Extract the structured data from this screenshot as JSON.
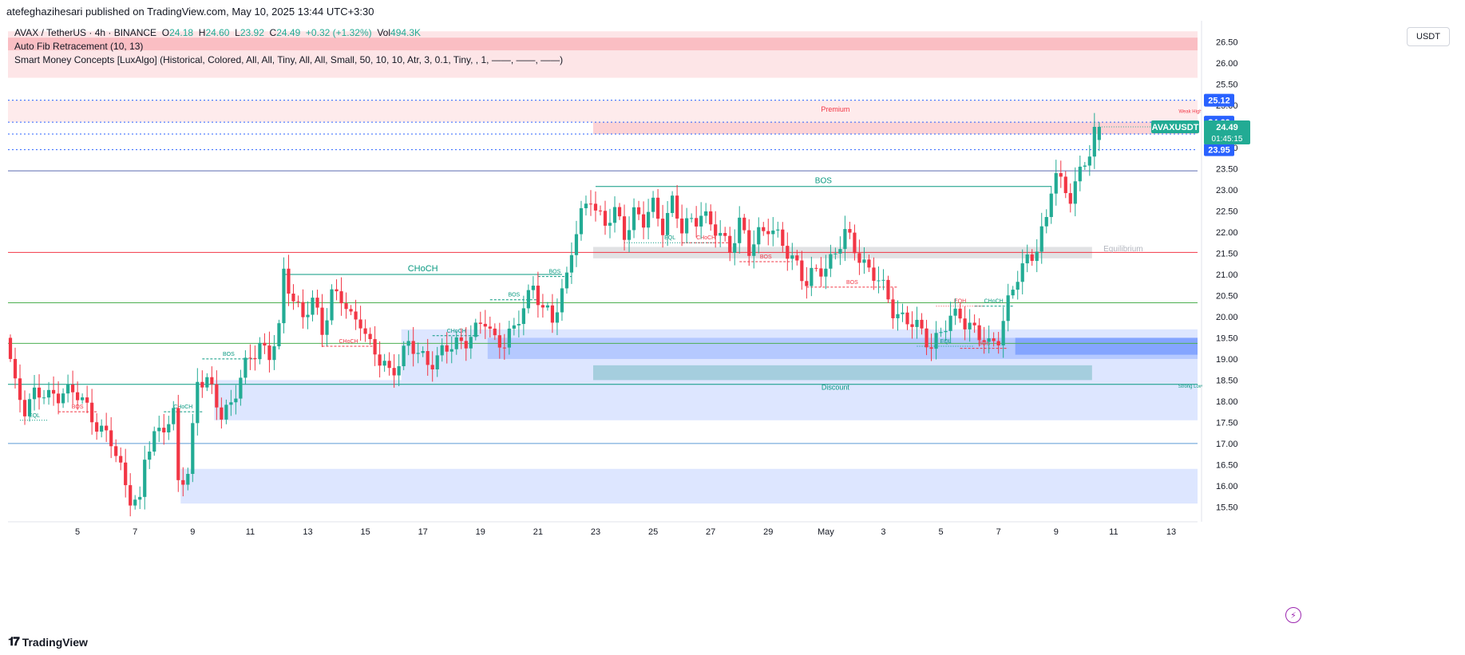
{
  "header": {
    "publisher": "atefeghazihesari published on TradingView.com, May 10, 2025 13:44 UTC+3:30"
  },
  "legend": {
    "symbol": "AVAX / TetherUS · 4h · BINANCE",
    "o_label": "O",
    "o_value": "24.18",
    "h_label": "H",
    "h_value": "24.60",
    "l_label": "L",
    "l_value": "23.92",
    "c_label": "C",
    "c_value": "24.49",
    "change": "+0.32 (+1.32%)",
    "vol_label": "Vol",
    "vol_value": "494.3K",
    "fib": "Auto Fib Retracement (10, 13)",
    "smc": "Smart Money Concepts [LuxAlgo] (Historical, Colored, All, All, Tiny, All, All, Small, 50, 10, 10, Atr, 3, 0.1, Tiny, , 1, ——, ——, ——)"
  },
  "currency": "USDT",
  "footer": {
    "logo_mark": "𝟏𝟕",
    "logo_text": "TradingView"
  },
  "colors": {
    "up": "#22ab94",
    "down": "#f23645",
    "blue": "#2962ff",
    "green_label": "#089981",
    "red_label": "#f23645"
  },
  "chart_data": {
    "type": "candlestick",
    "symbol": "AVAXUSDT",
    "timeframe": "4h",
    "ylim": [
      15.3,
      27.0
    ],
    "y_ticks": [
      "26.50",
      "26.00",
      "25.50",
      "25.00",
      "24.50",
      "24.00",
      "23.50",
      "23.00",
      "22.50",
      "22.00",
      "21.50",
      "21.00",
      "20.50",
      "20.00",
      "19.50",
      "19.00",
      "18.50",
      "18.00",
      "17.50",
      "17.00",
      "16.50",
      "16.00",
      "15.50"
    ],
    "x_ticks": [
      {
        "label": "5",
        "bar": 14
      },
      {
        "label": "7",
        "bar": 26
      },
      {
        "label": "9",
        "bar": 38
      },
      {
        "label": "11",
        "bar": 50
      },
      {
        "label": "13",
        "bar": 62
      },
      {
        "label": "15",
        "bar": 74
      },
      {
        "label": "17",
        "bar": 86
      },
      {
        "label": "19",
        "bar": 98
      },
      {
        "label": "21",
        "bar": 110
      },
      {
        "label": "23",
        "bar": 122
      },
      {
        "label": "25",
        "bar": 134
      },
      {
        "label": "27",
        "bar": 146
      },
      {
        "label": "29",
        "bar": 158
      },
      {
        "label": "May",
        "bar": 170
      },
      {
        "label": "3",
        "bar": 182
      },
      {
        "label": "5",
        "bar": 194
      },
      {
        "label": "7",
        "bar": 206
      },
      {
        "label": "9",
        "bar": 218
      },
      {
        "label": "11",
        "bar": 230
      },
      {
        "label": "13",
        "bar": 242
      }
    ],
    "bars_total": 248,
    "price_labels": [
      {
        "value": "25.12",
        "price": 25.12,
        "color": "#2962ff"
      },
      {
        "value": "24.60",
        "price": 24.6,
        "color": "#2962ff"
      },
      {
        "value": "24.32",
        "price": 24.32,
        "color": "#2962ff"
      },
      {
        "value": "23.95",
        "price": 23.95,
        "color": "#2962ff"
      }
    ],
    "last_price": {
      "symbol": "AVAXUSDT",
      "price": "24.49",
      "countdown": "01:45:15",
      "value": 24.49
    },
    "path": [
      [
        0,
        19.5
      ],
      [
        2,
        18.3
      ],
      [
        4,
        17.9
      ],
      [
        6,
        18.2
      ],
      [
        9,
        18.05
      ],
      [
        12,
        18.3
      ],
      [
        15,
        18.1
      ],
      [
        18,
        17.7
      ],
      [
        20,
        17.3
      ],
      [
        22,
        17.0
      ],
      [
        24,
        16.4
      ],
      [
        26,
        15.8
      ],
      [
        28,
        15.5
      ],
      [
        29,
        16.6
      ],
      [
        31,
        17.2
      ],
      [
        33,
        17.5
      ],
      [
        35,
        17.6
      ],
      [
        36,
        16.0
      ],
      [
        38,
        16.3
      ],
      [
        39,
        17.4
      ],
      [
        40,
        18.6
      ],
      [
        42,
        18.4
      ],
      [
        45,
        17.7
      ],
      [
        47,
        18.0
      ],
      [
        49,
        18.5
      ],
      [
        51,
        19.0
      ],
      [
        53,
        19.4
      ],
      [
        55,
        19.1
      ],
      [
        57,
        19.6
      ],
      [
        58,
        21.0
      ],
      [
        60,
        20.5
      ],
      [
        62,
        20.0
      ],
      [
        64,
        20.3
      ],
      [
        66,
        19.7
      ],
      [
        68,
        20.6
      ],
      [
        70,
        20.4
      ],
      [
        72,
        19.9
      ],
      [
        74,
        20.0
      ],
      [
        76,
        19.3
      ],
      [
        78,
        18.9
      ],
      [
        80,
        18.7
      ],
      [
        82,
        19.0
      ],
      [
        84,
        19.3
      ],
      [
        86,
        19.1
      ],
      [
        88,
        19.0
      ],
      [
        90,
        19.0
      ],
      [
        92,
        19.2
      ],
      [
        94,
        19.4
      ],
      [
        96,
        19.5
      ],
      [
        98,
        19.6
      ],
      [
        100,
        19.9
      ],
      [
        102,
        19.5
      ],
      [
        104,
        19.4
      ],
      [
        106,
        19.6
      ],
      [
        108,
        20.3
      ],
      [
        110,
        20.8
      ],
      [
        112,
        20.1
      ],
      [
        114,
        19.9
      ],
      [
        115,
        20.3
      ],
      [
        117,
        21.0
      ],
      [
        118,
        21.6
      ],
      [
        120,
        22.3
      ],
      [
        122,
        22.9
      ],
      [
        123,
        22.6
      ],
      [
        125,
        22.2
      ],
      [
        127,
        22.4
      ],
      [
        129,
        22.0
      ],
      [
        131,
        22.5
      ],
      [
        133,
        22.2
      ],
      [
        135,
        22.6
      ],
      [
        137,
        22.2
      ],
      [
        139,
        22.7
      ],
      [
        141,
        22.0
      ],
      [
        143,
        22.3
      ],
      [
        145,
        22.5
      ],
      [
        147,
        22.1
      ],
      [
        149,
        21.9
      ],
      [
        151,
        21.7
      ],
      [
        153,
        22.2
      ],
      [
        155,
        21.5
      ],
      [
        157,
        22.0
      ],
      [
        159,
        22.2
      ],
      [
        161,
        21.8
      ],
      [
        163,
        21.5
      ],
      [
        165,
        21.3
      ],
      [
        167,
        20.8
      ],
      [
        169,
        21.0
      ],
      [
        171,
        21.2
      ],
      [
        173,
        21.6
      ],
      [
        175,
        21.9
      ],
      [
        177,
        21.6
      ],
      [
        179,
        21.3
      ],
      [
        181,
        21.0
      ],
      [
        183,
        20.6
      ],
      [
        185,
        20.2
      ],
      [
        187,
        20.0
      ],
      [
        189,
        19.8
      ],
      [
        191,
        19.6
      ],
      [
        193,
        19.4
      ],
      [
        195,
        19.6
      ],
      [
        197,
        19.9
      ],
      [
        199,
        20.1
      ],
      [
        201,
        19.8
      ],
      [
        203,
        19.5
      ],
      [
        205,
        19.3
      ],
      [
        207,
        19.6
      ],
      [
        209,
        20.3
      ],
      [
        211,
        20.9
      ],
      [
        213,
        21.4
      ],
      [
        215,
        21.7
      ],
      [
        217,
        22.2
      ],
      [
        218,
        23.0
      ],
      [
        219,
        23.4
      ],
      [
        220,
        23.2
      ],
      [
        222,
        22.9
      ],
      [
        224,
        23.3
      ],
      [
        226,
        23.9
      ],
      [
        227,
        24.49
      ]
    ],
    "zones": [
      {
        "name": "supply-top",
        "y1": 26.75,
        "y2": 25.65,
        "x1": 0,
        "x2": 248,
        "color": "rgba(242,54,69,0.13)"
      },
      {
        "name": "supply-strong",
        "y1": 26.6,
        "y2": 26.3,
        "x1": 0,
        "x2": 248,
        "color": "rgba(242,54,69,0.22)"
      },
      {
        "name": "premium",
        "y1": 25.12,
        "y2": 24.6,
        "x1": 0,
        "x2": 248,
        "color": "rgba(242,54,69,0.10)"
      },
      {
        "name": "premium-ob",
        "y1": 24.6,
        "y2": 24.32,
        "x1": 122,
        "x2": 248,
        "color": "rgba(242,54,69,0.22)"
      },
      {
        "name": "equilibrium",
        "y1": 21.65,
        "y2": 21.38,
        "x1": 122,
        "x2": 226,
        "color": "rgba(120,123,134,0.22)"
      },
      {
        "name": "demand-a",
        "y1": 19.7,
        "y2": 18.5,
        "x1": 82,
        "x2": 248,
        "color": "rgba(41,98,255,0.16)"
      },
      {
        "name": "demand-b",
        "y1": 19.5,
        "y2": 19.0,
        "x1": 100,
        "x2": 248,
        "color": "rgba(41,98,255,0.22)"
      },
      {
        "name": "demand-c",
        "y1": 19.5,
        "y2": 19.1,
        "x1": 210,
        "x2": 248,
        "color": "rgba(41,98,255,0.35)"
      },
      {
        "name": "demand-d",
        "y1": 18.85,
        "y2": 18.5,
        "x1": 122,
        "x2": 226,
        "color": "rgba(0,137,123,0.25)"
      },
      {
        "name": "discount",
        "y1": 18.5,
        "y2": 17.55,
        "x1": 43,
        "x2": 248,
        "color": "rgba(41,98,255,0.16)"
      },
      {
        "name": "demand-low",
        "y1": 16.4,
        "y2": 15.58,
        "x1": 36,
        "x2": 248,
        "color": "rgba(41,98,255,0.16)"
      }
    ],
    "levels": [
      {
        "price": 25.12,
        "color": "#2962ff",
        "dash": "2,3"
      },
      {
        "price": 24.6,
        "color": "#2962ff",
        "dash": "2,3"
      },
      {
        "price": 24.32,
        "color": "#2962ff",
        "dash": "2,3"
      },
      {
        "price": 23.95,
        "color": "#2962ff",
        "dash": "2,3"
      },
      {
        "price": 23.45,
        "color": "#5b6bb0",
        "dash": ""
      },
      {
        "price": 21.52,
        "color": "#f23645",
        "dash": ""
      },
      {
        "price": 20.33,
        "color": "#4caf50",
        "dash": ""
      },
      {
        "price": 19.37,
        "color": "#4caf50",
        "dash": ""
      },
      {
        "price": 18.4,
        "color": "#089981",
        "dash": ""
      },
      {
        "price": 17.0,
        "color": "#5b9bd5",
        "dash": ""
      }
    ],
    "structure": [
      {
        "label": "CHoCH",
        "color": "#089981",
        "x1": 57,
        "x2": 115,
        "price": 21.0,
        "dash": "",
        "size": 11
      },
      {
        "label": "BOS",
        "color": "#089981",
        "x1": 122,
        "x2": 217,
        "price": 23.08,
        "dash": "",
        "size": 10
      },
      {
        "label": "BOS",
        "color": "#089981",
        "x1": 40,
        "x2": 51,
        "price": 19.0,
        "dash": "3,2",
        "size": 7
      },
      {
        "label": "CHoCH",
        "color": "#089981",
        "x1": 32,
        "x2": 40,
        "price": 17.75,
        "dash": "3,2",
        "size": 7
      },
      {
        "label": "BOS",
        "color": "#089981",
        "x1": 110,
        "x2": 117,
        "price": 20.95,
        "dash": "3,2",
        "size": 7
      },
      {
        "label": "BOS",
        "color": "#089981",
        "x1": 100,
        "x2": 110,
        "price": 20.4,
        "dash": "3,2",
        "size": 7
      },
      {
        "label": "CHoCH",
        "color": "#089981",
        "x1": 88,
        "x2": 98,
        "price": 19.55,
        "dash": "3,2",
        "size": 7
      },
      {
        "label": "CHoCH",
        "color": "#089981",
        "x1": 201,
        "x2": 209,
        "price": 20.25,
        "dash": "3,2",
        "size": 7
      },
      {
        "label": "BOS",
        "color": "#f23645",
        "x1": 10,
        "x2": 18,
        "price": 17.75,
        "dash": "3,2",
        "size": 7
      },
      {
        "label": "CHoCH",
        "color": "#f23645",
        "x1": 65,
        "x2": 76,
        "price": 19.3,
        "dash": "3,2",
        "size": 7
      },
      {
        "label": "CHoCH",
        "color": "#f23645",
        "x1": 140,
        "x2": 150,
        "price": 21.75,
        "dash": "3,2",
        "size": 7
      },
      {
        "label": "BOS",
        "color": "#f23645",
        "x1": 152,
        "x2": 163,
        "price": 21.3,
        "dash": "3,2",
        "size": 7
      },
      {
        "label": "BOS",
        "color": "#f23645",
        "x1": 166,
        "x2": 185,
        "price": 20.7,
        "dash": "3,2",
        "size": 7
      },
      {
        "label": "BOS",
        "color": "#f23645",
        "x1": 198,
        "x2": 208,
        "price": 19.25,
        "dash": "3,2",
        "size": 7
      },
      {
        "label": "EQH",
        "color": "#f23645",
        "x1": 193,
        "x2": 203,
        "price": 20.25,
        "dash": "1,2",
        "size": 7
      },
      {
        "label": "EQL",
        "color": "#089981",
        "x1": 2,
        "x2": 8,
        "price": 17.55,
        "dash": "1,2",
        "size": 7
      },
      {
        "label": "EQL",
        "color": "#089981",
        "x1": 128,
        "x2": 147,
        "price": 21.75,
        "dash": "1,2",
        "size": 7
      },
      {
        "label": "EQL",
        "color": "#089981",
        "x1": 189,
        "x2": 201,
        "price": 19.3,
        "dash": "1,2",
        "size": 7
      }
    ],
    "zone_labels": [
      {
        "label": "Premium",
        "color": "#f23645",
        "bar": 172,
        "price": 24.85,
        "size": 9
      },
      {
        "label": "Equilibrium",
        "color": "#b2b5be",
        "bar": 232,
        "price": 21.55,
        "size": 10
      },
      {
        "label": "Discount",
        "color": "#089981",
        "bar": 172,
        "price": 18.27,
        "size": 9
      },
      {
        "label": "Weak High",
        "color": "#f23645",
        "bar": 246,
        "price": 24.82,
        "size": 6
      },
      {
        "label": "Strong Low",
        "color": "#089981",
        "bar": 246,
        "price": 18.32,
        "size": 6
      }
    ]
  }
}
